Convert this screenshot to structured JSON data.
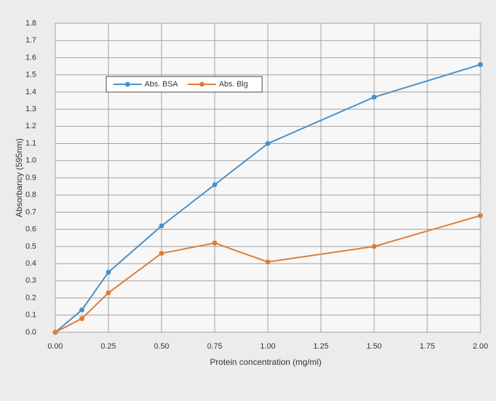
{
  "chart_data": {
    "type": "line",
    "x_label": "Protein concentration (mg/ml)",
    "y_label": "Absorbancy (595nm)",
    "x": [
      0,
      0.125,
      0.25,
      0.5,
      0.75,
      1.0,
      1.5,
      2.0
    ],
    "series": [
      {
        "name": "Abs. BSA",
        "color": "#4a90c8",
        "values": [
          0,
          0.13,
          0.35,
          0.62,
          0.86,
          1.1,
          1.37,
          1.56
        ]
      },
      {
        "name": "Abs. Blg",
        "color": "#e07b32",
        "values": [
          0,
          0.08,
          0.23,
          0.46,
          0.52,
          0.41,
          0.5,
          0.68
        ]
      }
    ],
    "xlim": [
      0,
      2
    ],
    "xticks": [
      {
        "value": 0,
        "label": "0.00"
      },
      0.25,
      {
        "value": 0.5,
        "label": "0.50"
      },
      0.75,
      {
        "value": 1,
        "label": "1.00"
      },
      1.25,
      {
        "value": 1.5,
        "label": "1.50"
      },
      1.75,
      {
        "value": 2,
        "label": "2.00"
      }
    ],
    "ylim": [
      0,
      1.8
    ],
    "yticks": [
      {
        "value": 0,
        "label": "0.0"
      },
      0.1,
      0.2,
      0.3,
      0.4,
      0.5,
      0.6,
      0.7,
      0.8,
      0.9,
      {
        "value": 1,
        "label": "1.0"
      },
      1.1,
      1.2,
      1.3,
      1.4,
      1.5,
      1.6,
      1.7,
      1.8
    ],
    "grid": true,
    "legend_position": "top"
  }
}
